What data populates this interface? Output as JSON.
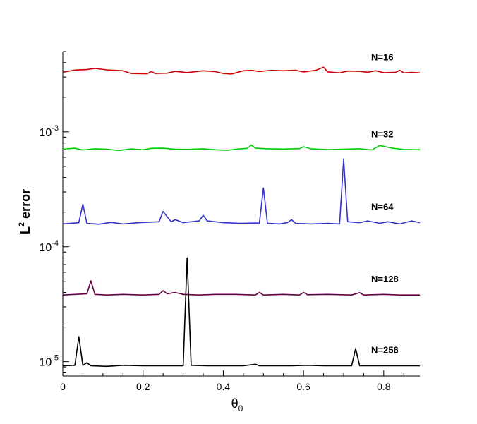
{
  "chart_data": {
    "type": "line",
    "xlabel": "θ",
    "xlabel_sub": "0",
    "ylabel_main": "L",
    "ylabel_sup": "2",
    "ylabel_rest": " error",
    "xlim": [
      0,
      0.89
    ],
    "ylim": [
      7.5e-06,
      0.005
    ],
    "yscale": "log",
    "x_ticks": [
      0,
      0.2,
      0.4,
      0.6,
      0.8
    ],
    "x_tick_labels": [
      "0",
      "0.2",
      "0.4",
      "0.6",
      "0.8"
    ],
    "y_major_ticks": [
      {
        "value": 1e-05,
        "base": "10",
        "exp": "-5"
      },
      {
        "value": 0.0001,
        "base": "10",
        "exp": "-4"
      },
      {
        "value": 0.001,
        "base": "10",
        "exp": "-3"
      }
    ],
    "grid": false,
    "legend": "inline labels at right",
    "series": [
      {
        "name": "N=16",
        "color": "#cc0000",
        "points": [
          [
            0,
            0.0033
          ],
          [
            0.03,
            0.00345
          ],
          [
            0.06,
            0.00348
          ],
          [
            0.08,
            0.00356
          ],
          [
            0.11,
            0.00346
          ],
          [
            0.15,
            0.0034
          ],
          [
            0.17,
            0.00322
          ],
          [
            0.21,
            0.0032
          ],
          [
            0.22,
            0.00335
          ],
          [
            0.23,
            0.00322
          ],
          [
            0.26,
            0.00324
          ],
          [
            0.28,
            0.00336
          ],
          [
            0.31,
            0.00328
          ],
          [
            0.35,
            0.0034
          ],
          [
            0.38,
            0.00334
          ],
          [
            0.4,
            0.00322
          ],
          [
            0.42,
            0.00318
          ],
          [
            0.45,
            0.0034
          ],
          [
            0.47,
            0.00343
          ],
          [
            0.49,
            0.00335
          ],
          [
            0.52,
            0.00343
          ],
          [
            0.55,
            0.0034
          ],
          [
            0.58,
            0.00344
          ],
          [
            0.6,
            0.00332
          ],
          [
            0.63,
            0.00343
          ],
          [
            0.65,
            0.00365
          ],
          [
            0.66,
            0.00333
          ],
          [
            0.69,
            0.00326
          ],
          [
            0.71,
            0.00338
          ],
          [
            0.74,
            0.00336
          ],
          [
            0.76,
            0.0033
          ],
          [
            0.78,
            0.0034
          ],
          [
            0.8,
            0.00327
          ],
          [
            0.83,
            0.0033
          ],
          [
            0.84,
            0.00344
          ],
          [
            0.85,
            0.00326
          ],
          [
            0.87,
            0.00329
          ],
          [
            0.89,
            0.00326
          ]
        ]
      },
      {
        "name": "N=32",
        "color": "#00cc00",
        "points": [
          [
            0,
            0.000706
          ],
          [
            0.03,
            0.00072
          ],
          [
            0.05,
            0.000695
          ],
          [
            0.08,
            0.000712
          ],
          [
            0.11,
            0.000705
          ],
          [
            0.14,
            0.000688
          ],
          [
            0.17,
            0.00071
          ],
          [
            0.2,
            0.000698
          ],
          [
            0.22,
            0.000718
          ],
          [
            0.25,
            0.00072
          ],
          [
            0.28,
            0.000705
          ],
          [
            0.31,
            0.000703
          ],
          [
            0.35,
            0.000712
          ],
          [
            0.38,
            0.000698
          ],
          [
            0.41,
            0.00069
          ],
          [
            0.44,
            0.00071
          ],
          [
            0.46,
            0.000718
          ],
          [
            0.47,
            0.000768
          ],
          [
            0.48,
            0.000722
          ],
          [
            0.51,
            0.000712
          ],
          [
            0.55,
            0.000708
          ],
          [
            0.59,
            0.000714
          ],
          [
            0.6,
            0.000742
          ],
          [
            0.62,
            0.00071
          ],
          [
            0.66,
            0.0007
          ],
          [
            0.7,
            0.000706
          ],
          [
            0.74,
            0.000712
          ],
          [
            0.77,
            0.000695
          ],
          [
            0.79,
            0.00076
          ],
          [
            0.82,
            0.000722
          ],
          [
            0.85,
            0.000702
          ],
          [
            0.89,
            0.000698
          ]
        ]
      },
      {
        "name": "N=64",
        "color": "#3333cc",
        "points": [
          [
            0,
            0.000158
          ],
          [
            0.04,
            0.000162
          ],
          [
            0.05,
            0.000235
          ],
          [
            0.06,
            0.00016
          ],
          [
            0.09,
            0.000157
          ],
          [
            0.12,
            0.000163
          ],
          [
            0.15,
            0.000158
          ],
          [
            0.19,
            0.000162
          ],
          [
            0.24,
            0.000165
          ],
          [
            0.25,
            0.000203
          ],
          [
            0.27,
            0.000165
          ],
          [
            0.28,
            0.000172
          ],
          [
            0.3,
            0.000162
          ],
          [
            0.34,
            0.000168
          ],
          [
            0.35,
            0.000188
          ],
          [
            0.36,
            0.000168
          ],
          [
            0.4,
            0.000162
          ],
          [
            0.44,
            0.00016
          ],
          [
            0.49,
            0.000161
          ],
          [
            0.5,
            0.000325
          ],
          [
            0.51,
            0.00016
          ],
          [
            0.54,
            0.000158
          ],
          [
            0.56,
            0.000162
          ],
          [
            0.57,
            0.000172
          ],
          [
            0.58,
            0.00016
          ],
          [
            0.62,
            0.000158
          ],
          [
            0.66,
            0.00016
          ],
          [
            0.69,
            0.000158
          ],
          [
            0.7,
            0.00058
          ],
          [
            0.71,
            0.000165
          ],
          [
            0.74,
            0.000162
          ],
          [
            0.76,
            0.000168
          ],
          [
            0.79,
            0.00016
          ],
          [
            0.81,
            0.000165
          ],
          [
            0.84,
            0.000158
          ],
          [
            0.87,
            0.000168
          ],
          [
            0.89,
            0.000162
          ]
        ]
      },
      {
        "name": "N=128",
        "color": "#660044",
        "points": [
          [
            0,
            3.8e-05
          ],
          [
            0.03,
            3.85e-05
          ],
          [
            0.06,
            3.9e-05
          ],
          [
            0.07,
            5.05e-05
          ],
          [
            0.08,
            3.85e-05
          ],
          [
            0.11,
            3.8e-05
          ],
          [
            0.15,
            3.85e-05
          ],
          [
            0.2,
            3.8e-05
          ],
          [
            0.24,
            3.85e-05
          ],
          [
            0.25,
            4.15e-05
          ],
          [
            0.26,
            3.9e-05
          ],
          [
            0.28,
            4e-05
          ],
          [
            0.3,
            3.85e-05
          ],
          [
            0.34,
            3.8e-05
          ],
          [
            0.38,
            3.85e-05
          ],
          [
            0.43,
            3.85e-05
          ],
          [
            0.48,
            3.8e-05
          ],
          [
            0.49,
            4e-05
          ],
          [
            0.5,
            3.8e-05
          ],
          [
            0.55,
            3.85e-05
          ],
          [
            0.59,
            3.8e-05
          ],
          [
            0.6,
            4e-05
          ],
          [
            0.61,
            3.82e-05
          ],
          [
            0.66,
            3.85e-05
          ],
          [
            0.72,
            3.8e-05
          ],
          [
            0.74,
            3.98e-05
          ],
          [
            0.75,
            3.8e-05
          ],
          [
            0.8,
            3.85e-05
          ],
          [
            0.84,
            3.8e-05
          ],
          [
            0.89,
            3.8e-05
          ]
        ]
      },
      {
        "name": "N=256",
        "color": "#000000",
        "points": [
          [
            0,
            9.2e-06
          ],
          [
            0.03,
            9.3e-06
          ],
          [
            0.04,
            1.65e-05
          ],
          [
            0.05,
            9.3e-06
          ],
          [
            0.06,
            9.8e-06
          ],
          [
            0.07,
            9.2e-06
          ],
          [
            0.11,
            9.1e-06
          ],
          [
            0.15,
            9.3e-06
          ],
          [
            0.2,
            9.2e-06
          ],
          [
            0.25,
            9.2e-06
          ],
          [
            0.3,
            9.2e-06
          ],
          [
            0.31,
            8e-05
          ],
          [
            0.32,
            9.3e-06
          ],
          [
            0.36,
            9.2e-06
          ],
          [
            0.4,
            9.2e-06
          ],
          [
            0.45,
            9.2e-06
          ],
          [
            0.48,
            9.5e-06
          ],
          [
            0.49,
            9.2e-06
          ],
          [
            0.53,
            9.2e-06
          ],
          [
            0.57,
            9.2e-06
          ],
          [
            0.61,
            9.3e-06
          ],
          [
            0.65,
            9.2e-06
          ],
          [
            0.7,
            9.2e-06
          ],
          [
            0.72,
            9.2e-06
          ],
          [
            0.73,
            1.3e-05
          ],
          [
            0.74,
            9.2e-06
          ],
          [
            0.78,
            9.2e-06
          ],
          [
            0.83,
            9.2e-06
          ],
          [
            0.89,
            9.2e-06
          ]
        ]
      }
    ]
  }
}
